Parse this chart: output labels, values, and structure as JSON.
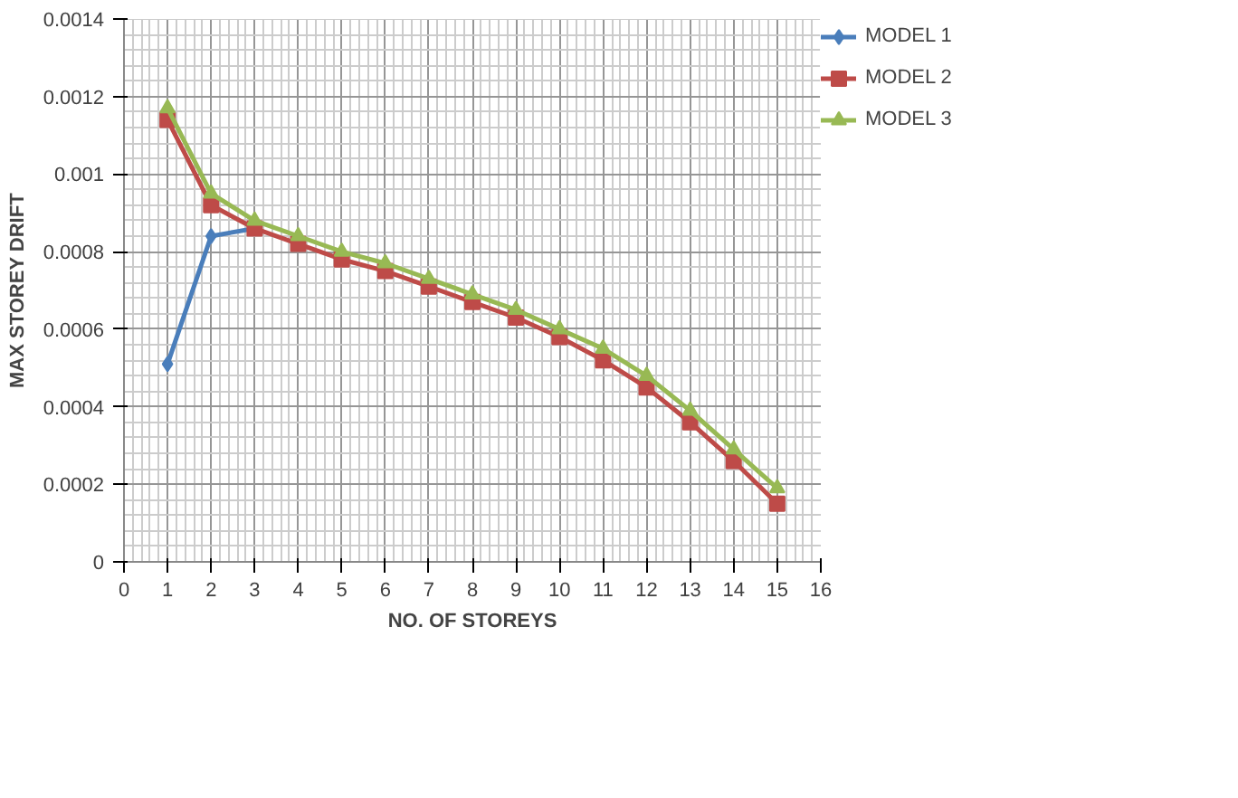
{
  "chart_data": {
    "type": "line",
    "xlabel": "NO. OF STOREYS",
    "ylabel": "MAX STOREY DRIFT",
    "x": [
      1,
      2,
      3,
      4,
      5,
      6,
      7,
      8,
      9,
      10,
      11,
      12,
      13,
      14,
      15
    ],
    "xlim": [
      0,
      16
    ],
    "xticks": [
      0,
      1,
      2,
      3,
      4,
      5,
      6,
      7,
      8,
      9,
      10,
      11,
      12,
      13,
      14,
      15,
      16
    ],
    "ylim": [
      0,
      0.0014
    ],
    "yticks": [
      0,
      0.0002,
      0.0004,
      0.0006,
      0.0008,
      {
        "value": 0.001,
        "label": "0.001"
      },
      0.0012,
      0.0014
    ],
    "grid": true,
    "legend": "right",
    "series": [
      {
        "name": "MODEL 1",
        "color": "#4a7ebb",
        "marker": "diamond",
        "values": [
          0.00051,
          0.00084,
          0.00086,
          null,
          null,
          null,
          null,
          null,
          null,
          null,
          null,
          null,
          null,
          null,
          null
        ]
      },
      {
        "name": "MODEL 2",
        "color": "#be4b48",
        "marker": "square",
        "values": [
          0.00114,
          0.00092,
          0.00086,
          0.00082,
          0.00078,
          0.00075,
          0.00071,
          0.00067,
          0.00063,
          0.00058,
          0.00052,
          0.00045,
          0.00036,
          0.00026,
          0.00015
        ]
      },
      {
        "name": "MODEL 3",
        "color": "#98b954",
        "marker": "triangle",
        "values": [
          0.00117,
          0.00095,
          0.00088,
          0.00084,
          0.0008,
          0.00077,
          0.00073,
          0.00069,
          0.00065,
          0.0006,
          0.00055,
          0.00048,
          0.00039,
          0.00029,
          0.00019
        ]
      }
    ]
  }
}
